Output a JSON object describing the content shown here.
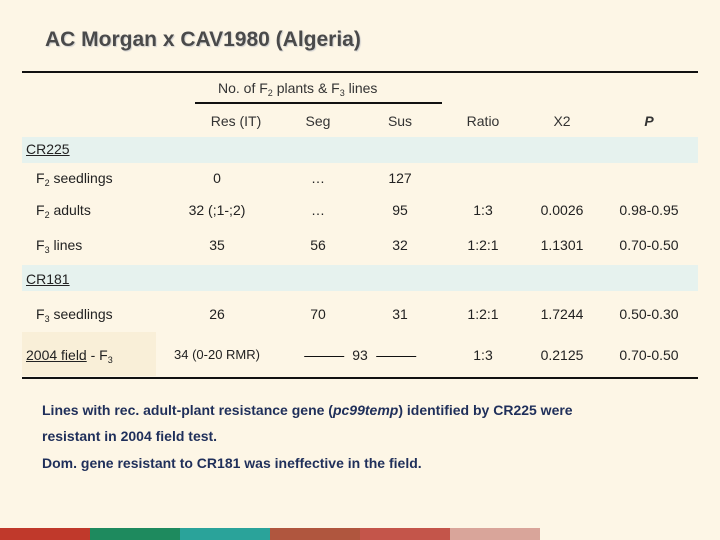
{
  "title": "AC Morgan x CAV1980 (Algeria)",
  "table": {
    "header_group": {
      "prefix": "No. of F",
      "sub1": "2",
      "middle": " plants & F",
      "sub2": "3",
      "suffix": " lines"
    },
    "columns": [
      "Res (IT)",
      "Seg",
      "Sus",
      "Ratio",
      "X2",
      "P"
    ],
    "groups": [
      {
        "name": "CR225",
        "rows": [
          {
            "label_main": "F",
            "label_sub": "2",
            "label_rest": " seedlings",
            "cells": [
              "0",
              "…",
              "127",
              "",
              "",
              ""
            ]
          },
          {
            "label_main": "F",
            "label_sub": "2",
            "label_rest": " adults",
            "cells": [
              "32 (;1-;2)",
              "…",
              "95",
              "1:3",
              "0.0026",
              "0.98-0.95"
            ]
          },
          {
            "label_main": "F",
            "label_sub": "3",
            "label_rest": " lines",
            "cells": [
              "35",
              "56",
              "32",
              "1:2:1",
              "1.1301",
              "0.70-0.50"
            ]
          }
        ]
      },
      {
        "name": "CR181",
        "rows": [
          {
            "label_main": "F",
            "label_sub": "3",
            "label_rest": " seedlings",
            "cells": [
              "26",
              "70",
              "31",
              "1:2:1",
              "1.7244",
              "0.50-0.30"
            ]
          },
          {
            "label_main": "2004 field",
            "label_mid": " - F",
            "label_sub": "3",
            "cells": [
              "34 (0-20 RMR)",
              "93",
              "",
              "1:3",
              "0.2125",
              "0.70-0.50"
            ]
          }
        ]
      }
    ]
  },
  "notes": {
    "line1": "Lines with rec. adult-plant resistance gene (",
    "gene": "pc99temp",
    "line1_end": ") identified by CR225 were",
    "line2": "resistant in 2004 field test.",
    "line3": "Dom. gene resistant to CR181 was ineffective in the field."
  },
  "colors": {
    "background": "#fdf6e6",
    "group_band": "#e6f2ee",
    "footer_stripes": [
      "#c0392b",
      "#1e8a5e",
      "#2aa39a",
      "#b0563e",
      "#c4554a",
      "#d9a59a"
    ]
  }
}
